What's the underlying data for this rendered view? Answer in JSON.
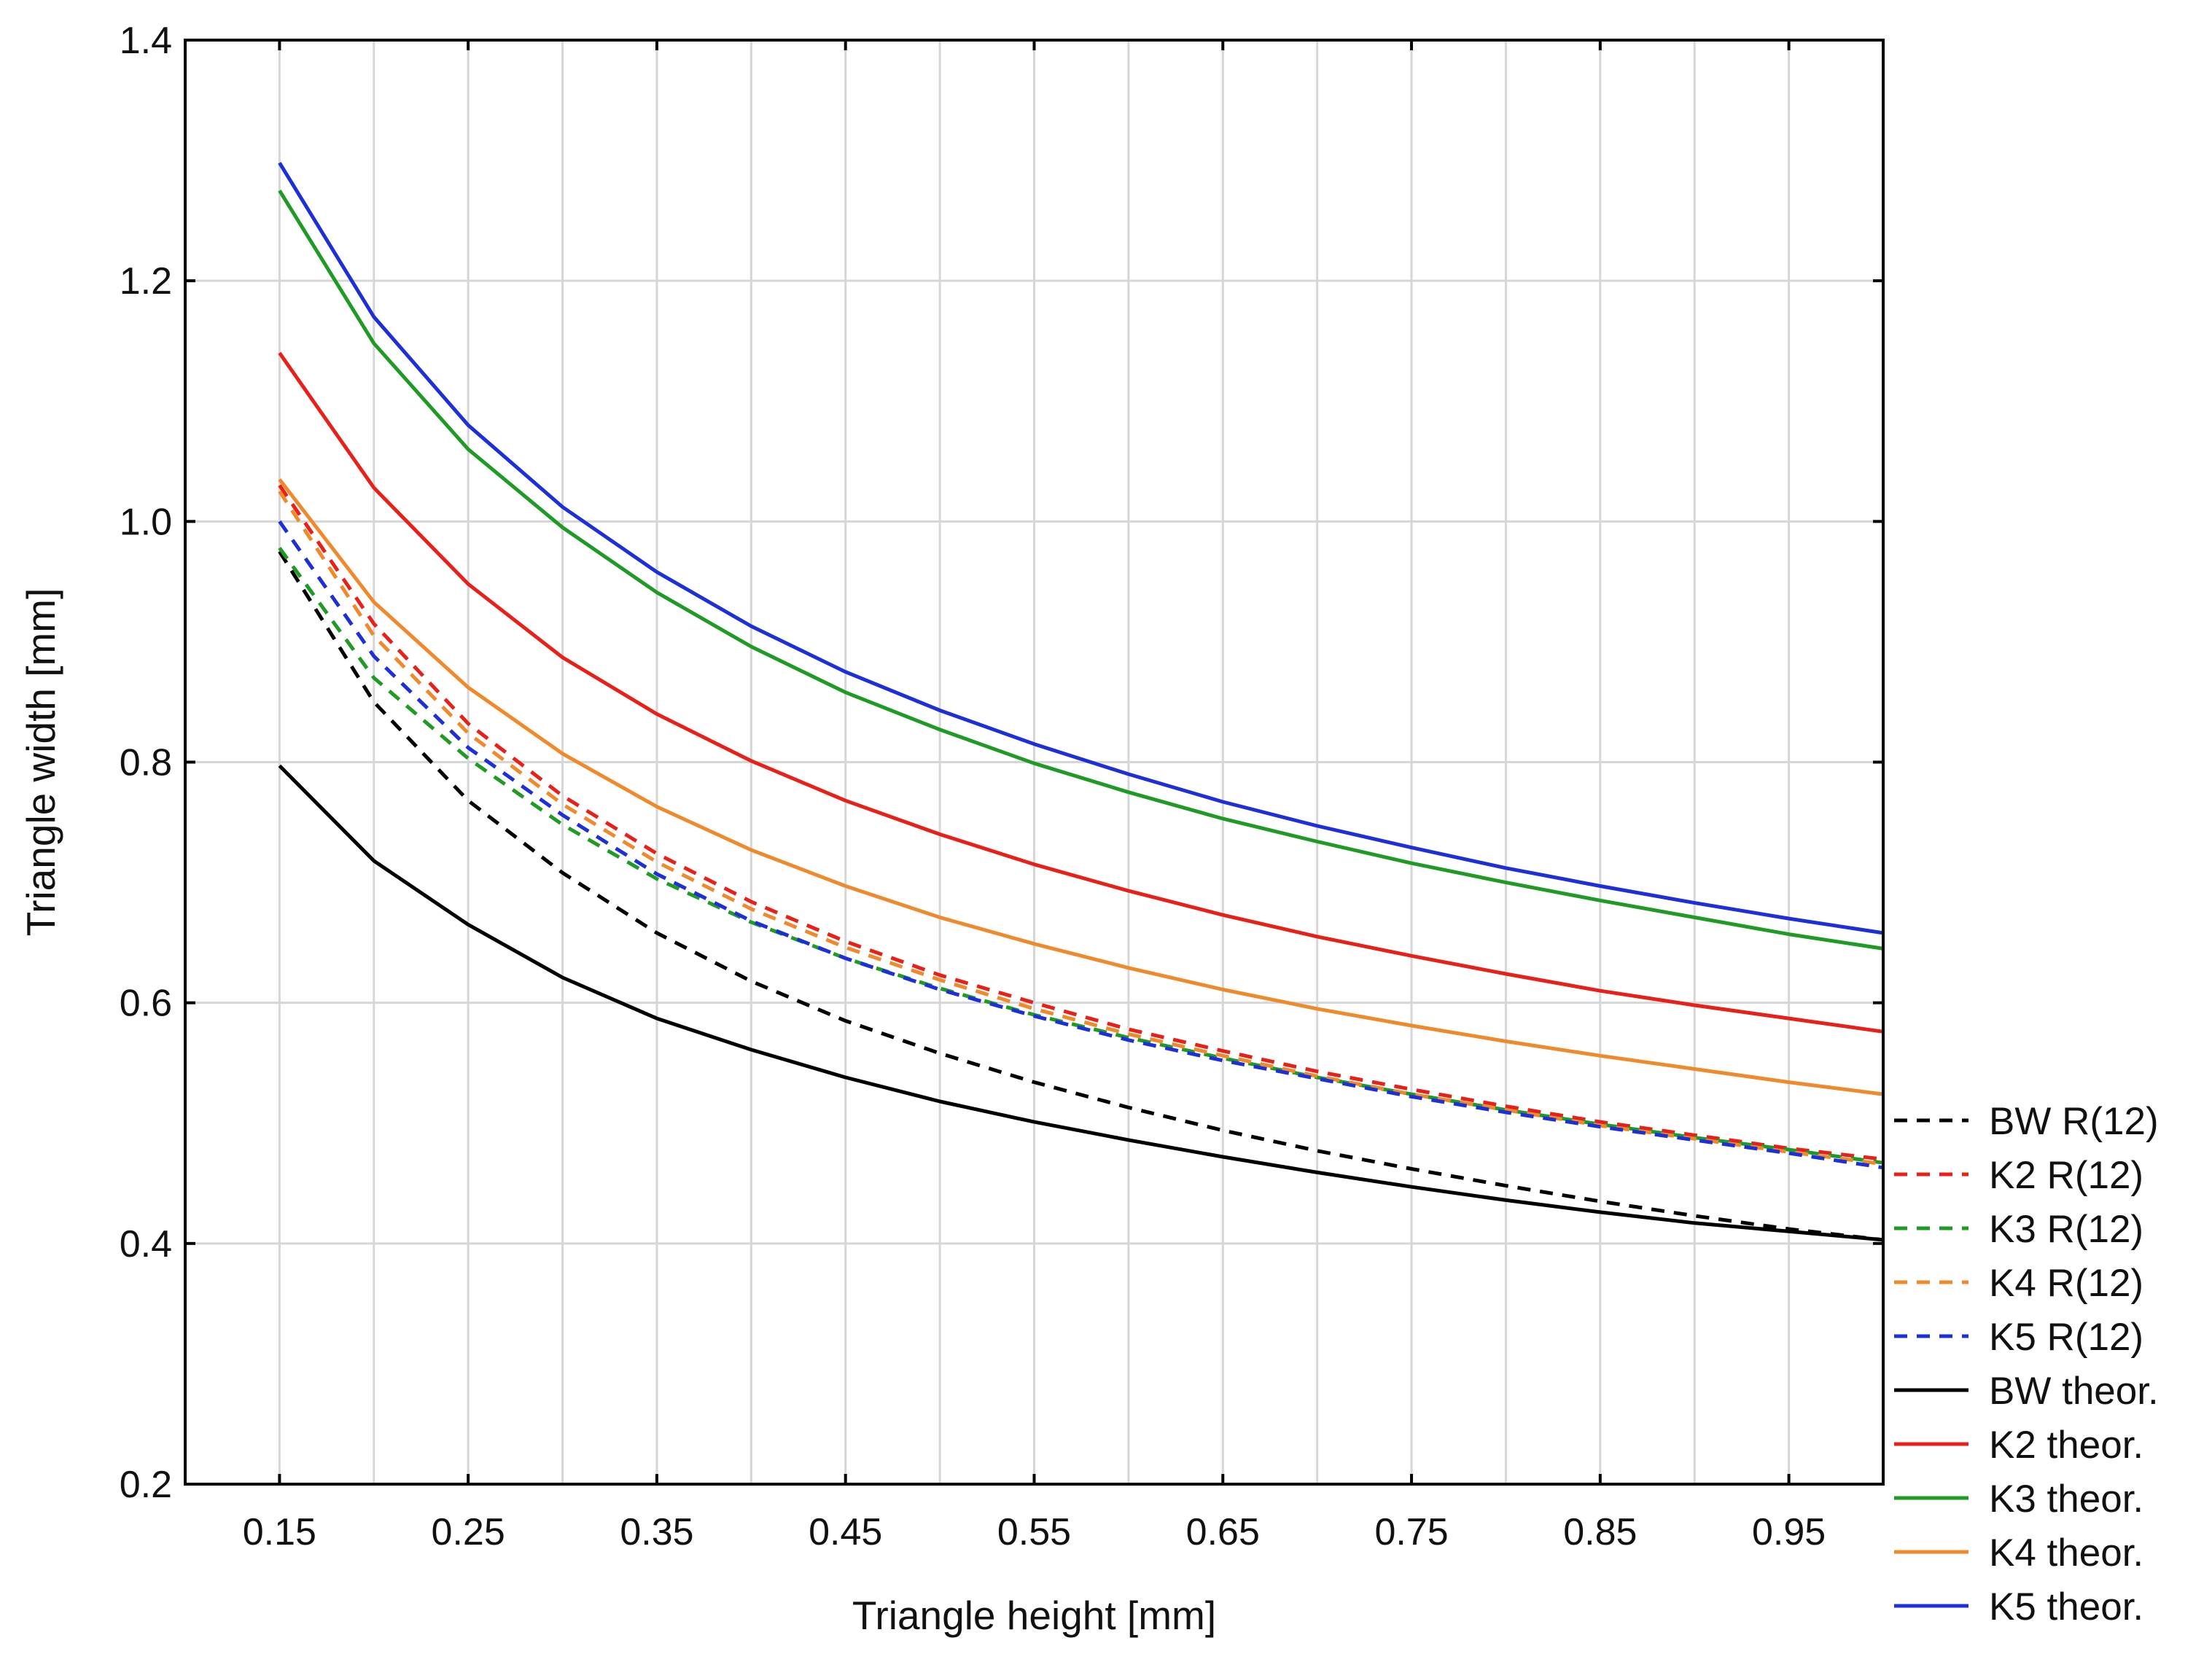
{
  "chart_data": {
    "type": "line",
    "title": "",
    "xlabel": "Triangle height [mm]",
    "ylabel": "Triangle width [mm]",
    "xlim": [
      0.1,
      1.0
    ],
    "ylim": [
      0.2,
      1.4
    ],
    "xticks": [
      "0.15",
      "0.25",
      "0.35",
      "0.45",
      "0.55",
      "0.65",
      "0.75",
      "0.85",
      "0.95"
    ],
    "yticks": [
      "0.2",
      "0.4",
      "0.6",
      "0.8",
      "1.0",
      "1.2",
      "1.4"
    ],
    "grid": true,
    "legend_position": "right",
    "x": [
      0.15,
      0.2,
      0.25,
      0.3,
      0.35,
      0.4,
      0.45,
      0.5,
      0.55,
      0.6,
      0.65,
      0.7,
      0.75,
      0.8,
      0.85,
      0.9,
      0.95,
      1.0
    ],
    "series": [
      {
        "name": "BW R(12)",
        "color": "#000000",
        "dash": "dashed",
        "values": [
          0.975,
          0.85,
          0.768,
          0.708,
          0.658,
          0.618,
          0.585,
          0.558,
          0.534,
          0.513,
          0.494,
          0.477,
          0.462,
          0.448,
          0.435,
          0.423,
          0.412,
          0.403
        ]
      },
      {
        "name": "K2 R(12)",
        "color": "#e8201a",
        "dash": "dashed",
        "values": [
          1.03,
          0.915,
          0.832,
          0.772,
          0.724,
          0.684,
          0.651,
          0.623,
          0.6,
          0.578,
          0.56,
          0.543,
          0.528,
          0.514,
          0.501,
          0.49,
          0.479,
          0.47
        ]
      },
      {
        "name": "K3 R(12)",
        "color": "#1f9a25",
        "dash": "dashed",
        "values": [
          0.978,
          0.87,
          0.803,
          0.748,
          0.703,
          0.667,
          0.637,
          0.612,
          0.59,
          0.571,
          0.554,
          0.538,
          0.524,
          0.511,
          0.499,
          0.488,
          0.478,
          0.467
        ]
      },
      {
        "name": "K4 R(12)",
        "color": "#ef8a2c",
        "dash": "dashed",
        "values": [
          1.025,
          0.905,
          0.824,
          0.765,
          0.717,
          0.678,
          0.646,
          0.619,
          0.595,
          0.574,
          0.556,
          0.539,
          0.524,
          0.511,
          0.498,
          0.487,
          0.476,
          0.466
        ]
      },
      {
        "name": "K5 R(12)",
        "color": "#1c2fd8",
        "dash": "dashed",
        "values": [
          1.0,
          0.888,
          0.812,
          0.756,
          0.707,
          0.668,
          0.637,
          0.611,
          0.589,
          0.569,
          0.552,
          0.537,
          0.522,
          0.509,
          0.497,
          0.486,
          0.475,
          0.463
        ]
      },
      {
        "name": "BW theor.",
        "color": "#000000",
        "dash": "solid",
        "values": [
          0.797,
          0.718,
          0.665,
          0.621,
          0.587,
          0.561,
          0.538,
          0.518,
          0.501,
          0.486,
          0.472,
          0.459,
          0.447,
          0.436,
          0.426,
          0.417,
          0.41,
          0.403
        ]
      },
      {
        "name": "K2 theor.",
        "color": "#e8201a",
        "dash": "solid",
        "values": [
          1.14,
          1.028,
          0.948,
          0.887,
          0.84,
          0.801,
          0.768,
          0.74,
          0.715,
          0.693,
          0.673,
          0.655,
          0.639,
          0.624,
          0.61,
          0.598,
          0.587,
          0.576
        ]
      },
      {
        "name": "K3 theor.",
        "color": "#1f9a25",
        "dash": "solid",
        "values": [
          1.275,
          1.148,
          1.06,
          0.995,
          0.941,
          0.896,
          0.858,
          0.827,
          0.799,
          0.775,
          0.753,
          0.734,
          0.716,
          0.7,
          0.685,
          0.671,
          0.657,
          0.645
        ]
      },
      {
        "name": "K4 theor.",
        "color": "#ef8a2c",
        "dash": "solid",
        "values": [
          1.035,
          0.933,
          0.862,
          0.807,
          0.763,
          0.727,
          0.697,
          0.671,
          0.649,
          0.629,
          0.611,
          0.595,
          0.581,
          0.568,
          0.556,
          0.545,
          0.534,
          0.524
        ]
      },
      {
        "name": "K5 theor.",
        "color": "#1c2fd8",
        "dash": "solid",
        "values": [
          1.298,
          1.17,
          1.08,
          1.012,
          0.958,
          0.913,
          0.875,
          0.843,
          0.815,
          0.79,
          0.767,
          0.747,
          0.729,
          0.712,
          0.697,
          0.683,
          0.67,
          0.658
        ]
      }
    ]
  }
}
